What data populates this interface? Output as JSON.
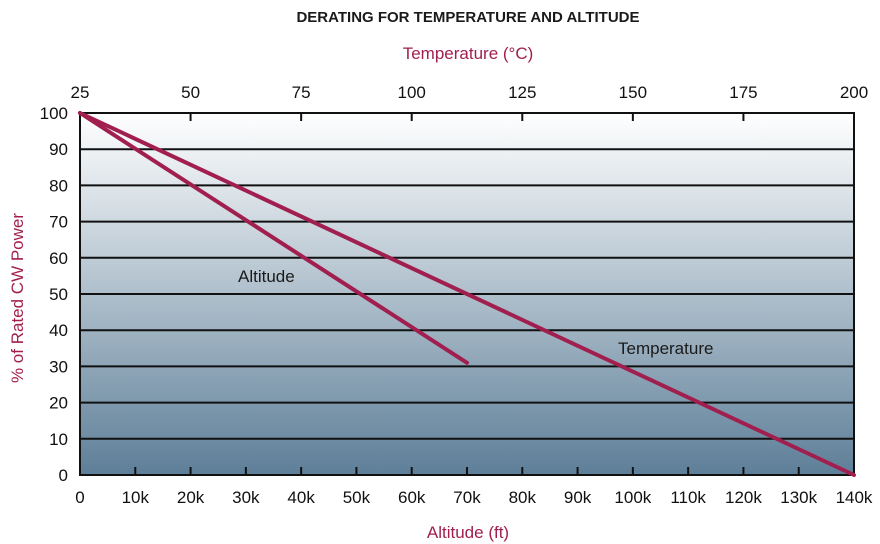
{
  "chart_data": {
    "type": "line",
    "title": "DERATING FOR TEMPERATURE AND ALTITUDE",
    "top_axis": {
      "label": "Temperature (°C)",
      "range": [
        25,
        200
      ],
      "ticks": [
        "25",
        "50",
        "75",
        "100",
        "125",
        "150",
        "175",
        "200"
      ]
    },
    "bottom_axis": {
      "label": "Altitude (ft)",
      "range": [
        0,
        140000
      ],
      "ticks": [
        "0",
        "10k",
        "20k",
        "30k",
        "40k",
        "50k",
        "60k",
        "70k",
        "80k",
        "90k",
        "100k",
        "110k",
        "120k",
        "130k",
        "140k"
      ]
    },
    "y_axis": {
      "label": "% of Rated CW Power",
      "range": [
        0,
        100
      ],
      "ticks": [
        "0",
        "10",
        "20",
        "30",
        "40",
        "50",
        "60",
        "70",
        "80",
        "90",
        "100"
      ]
    },
    "grid": "horizontal",
    "series": [
      {
        "name": "Temperature",
        "x_axis": "top",
        "points": [
          [
            25,
            100
          ],
          [
            200,
            0
          ]
        ]
      },
      {
        "name": "Altitude",
        "x_axis": "bottom",
        "points": [
          [
            0,
            100
          ],
          [
            70000,
            31
          ]
        ]
      }
    ],
    "annotations": [
      "Altitude",
      "Temperature"
    ],
    "colors": {
      "line": "#A11F4F",
      "axis_label": "#A11F4F",
      "gradient_top": "#FFFFFF",
      "gradient_bottom": "#5E7F98",
      "grid": "#111111"
    }
  }
}
